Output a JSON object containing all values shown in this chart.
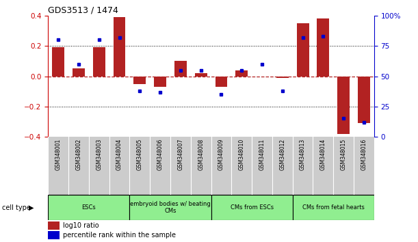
{
  "title": "GDS3513 / 1474",
  "samples": [
    "GSM348001",
    "GSM348002",
    "GSM348003",
    "GSM348004",
    "GSM348005",
    "GSM348006",
    "GSM348007",
    "GSM348008",
    "GSM348009",
    "GSM348010",
    "GSM348011",
    "GSM348012",
    "GSM348013",
    "GSM348014",
    "GSM348015",
    "GSM348016"
  ],
  "log10_ratio": [
    0.19,
    0.05,
    0.19,
    0.39,
    -0.05,
    -0.07,
    0.1,
    0.02,
    -0.07,
    0.04,
    0.0,
    -0.01,
    0.35,
    0.38,
    -0.38,
    -0.31
  ],
  "percentile_rank": [
    80,
    60,
    80,
    82,
    38,
    37,
    55,
    55,
    35,
    55,
    60,
    38,
    82,
    83,
    15,
    12
  ],
  "bar_color": "#b22222",
  "point_color": "#0000cc",
  "ylim_left": [
    -0.4,
    0.4
  ],
  "ylim_right": [
    0,
    100
  ],
  "yticks_left": [
    -0.4,
    -0.2,
    0.0,
    0.2,
    0.4
  ],
  "yticks_right": [
    0,
    25,
    50,
    75,
    100
  ],
  "ytick_labels_right": [
    "0",
    "25",
    "50",
    "75",
    "100%"
  ],
  "cell_type_groups": [
    {
      "label": "ESCs",
      "start": 0,
      "end": 3
    },
    {
      "label": "embryoid bodies w/ beating\nCMs",
      "start": 4,
      "end": 7
    },
    {
      "label": "CMs from ESCs",
      "start": 8,
      "end": 11
    },
    {
      "label": "CMs from fetal hearts",
      "start": 12,
      "end": 15
    }
  ],
  "cell_type_label": "cell type",
  "legend_red": "log10 ratio",
  "legend_blue": "percentile rank within the sample",
  "bar_color_hex": "#b22222",
  "point_color_hex": "#0000cc",
  "axis_color_left": "#cc0000",
  "axis_color_right": "#0000cc",
  "sample_bg": "#cccccc",
  "group_bg": "#90EE90"
}
